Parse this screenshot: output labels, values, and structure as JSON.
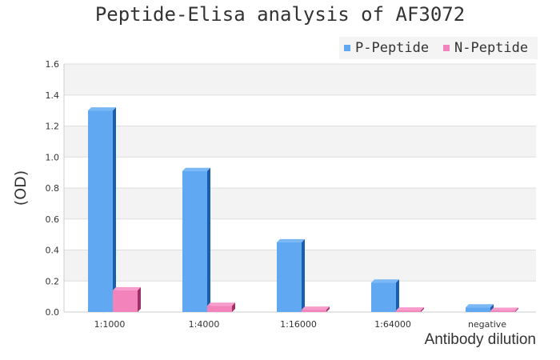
{
  "chart_data": {
    "type": "bar",
    "title": "Peptide-Elisa analysis of AF3072",
    "xlabel": "Antibody dilution",
    "ylabel": "(OD)",
    "ylim": [
      0,
      1.6
    ],
    "yticks": [
      "0.0",
      "0.2",
      "0.4",
      "0.6",
      "0.8",
      "1.0",
      "1.2",
      "1.4",
      "1.6"
    ],
    "grid": true,
    "legend_position": "top-right",
    "categories": [
      "1:1000",
      "1:4000",
      "1:16000",
      "1:64000",
      "negative"
    ],
    "series": [
      {
        "name": "P-Peptide",
        "color": "#60a8f2",
        "values": [
          1.3,
          0.91,
          0.45,
          0.19,
          0.03
        ]
      },
      {
        "name": "N-Peptide",
        "color": "#f383bb",
        "values": [
          0.14,
          0.04,
          0.015,
          0.01,
          0.008
        ]
      }
    ]
  }
}
